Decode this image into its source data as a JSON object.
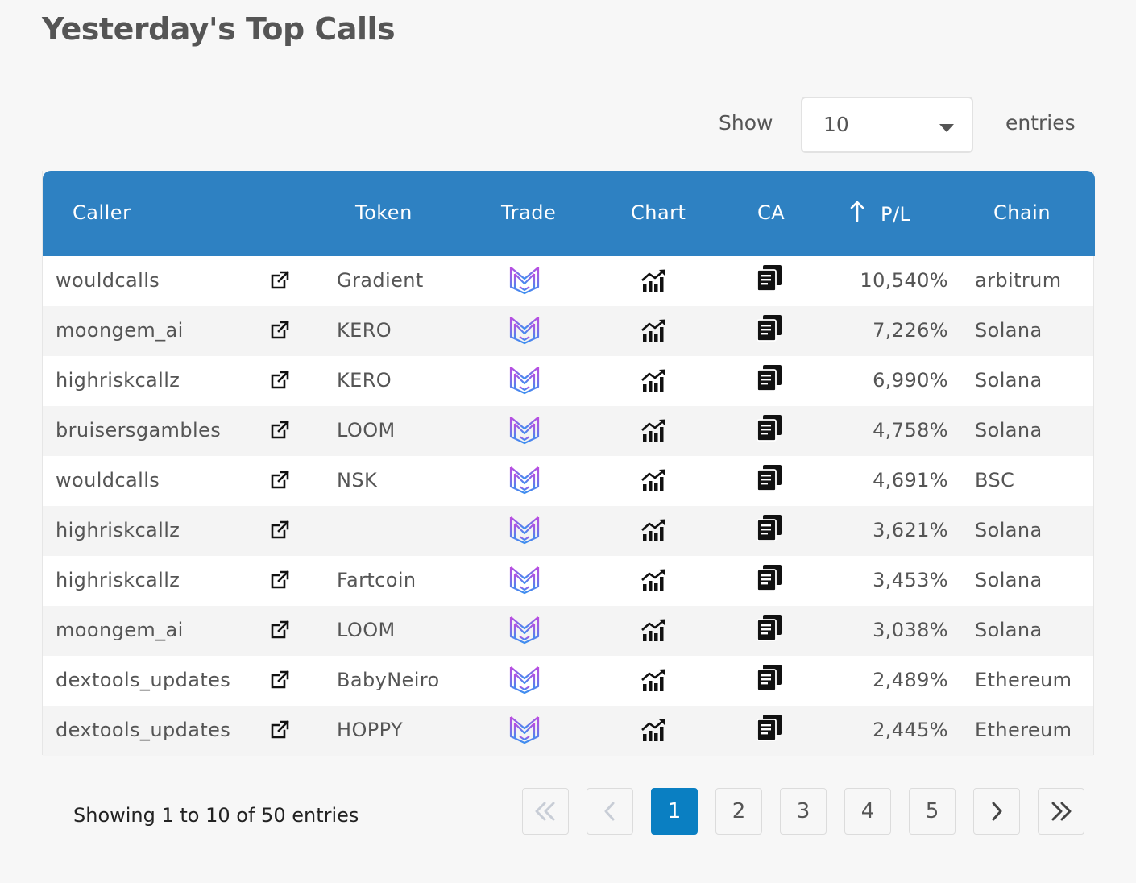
{
  "title": "Yesterday's Top Calls",
  "length_menu": {
    "show_label": "Show",
    "value": "10",
    "entries_label": "entries"
  },
  "table": {
    "headers": {
      "caller": "Caller",
      "token": "Token",
      "trade": "Trade",
      "chart": "Chart",
      "ca": "CA",
      "pl": "P/L",
      "chain": "Chain"
    },
    "sort": {
      "column": "P/L",
      "direction": "descending"
    },
    "rows": [
      {
        "caller": "wouldcalls",
        "token": "Gradient",
        "pl": "10,540%",
        "chain": "arbitrum"
      },
      {
        "caller": "moongem_ai",
        "token": "KERO",
        "pl": "7,226%",
        "chain": "Solana"
      },
      {
        "caller": "highriskcallz",
        "token": "KERO",
        "pl": "6,990%",
        "chain": "Solana"
      },
      {
        "caller": "bruisersgambles",
        "token": "LOOM",
        "pl": "4,758%",
        "chain": "Solana"
      },
      {
        "caller": "wouldcalls",
        "token": "NSK",
        "pl": "4,691%",
        "chain": "BSC"
      },
      {
        "caller": "highriskcallz",
        "token": "",
        "pl": "3,621%",
        "chain": "Solana"
      },
      {
        "caller": "highriskcallz",
        "token": "Fartcoin",
        "pl": "3,453%",
        "chain": "Solana"
      },
      {
        "caller": "moongem_ai",
        "token": "LOOM",
        "pl": "3,038%",
        "chain": "Solana"
      },
      {
        "caller": "dextools_updates",
        "token": "BabyNeiro",
        "pl": "2,489%",
        "chain": "Ethereum"
      },
      {
        "caller": "dextools_updates",
        "token": "HOPPY",
        "pl": "2,445%",
        "chain": "Ethereum"
      }
    ],
    "row_icons": {
      "link": "external-link-icon",
      "trade": "trade-logo-icon",
      "chart": "chart-trend-icon",
      "ca": "copy-icon"
    }
  },
  "info": "Showing 1 to 10 of 50 entries",
  "pagination": {
    "first": "first-page-icon",
    "prev": "previous-page-icon",
    "pages": [
      "1",
      "2",
      "3",
      "4",
      "5"
    ],
    "current": "1",
    "next": "next-page-icon",
    "last": "last-page-icon"
  },
  "colors": {
    "header": "#2e81c2",
    "active_page": "#0a7fc2",
    "background": "#f7f7f7"
  }
}
